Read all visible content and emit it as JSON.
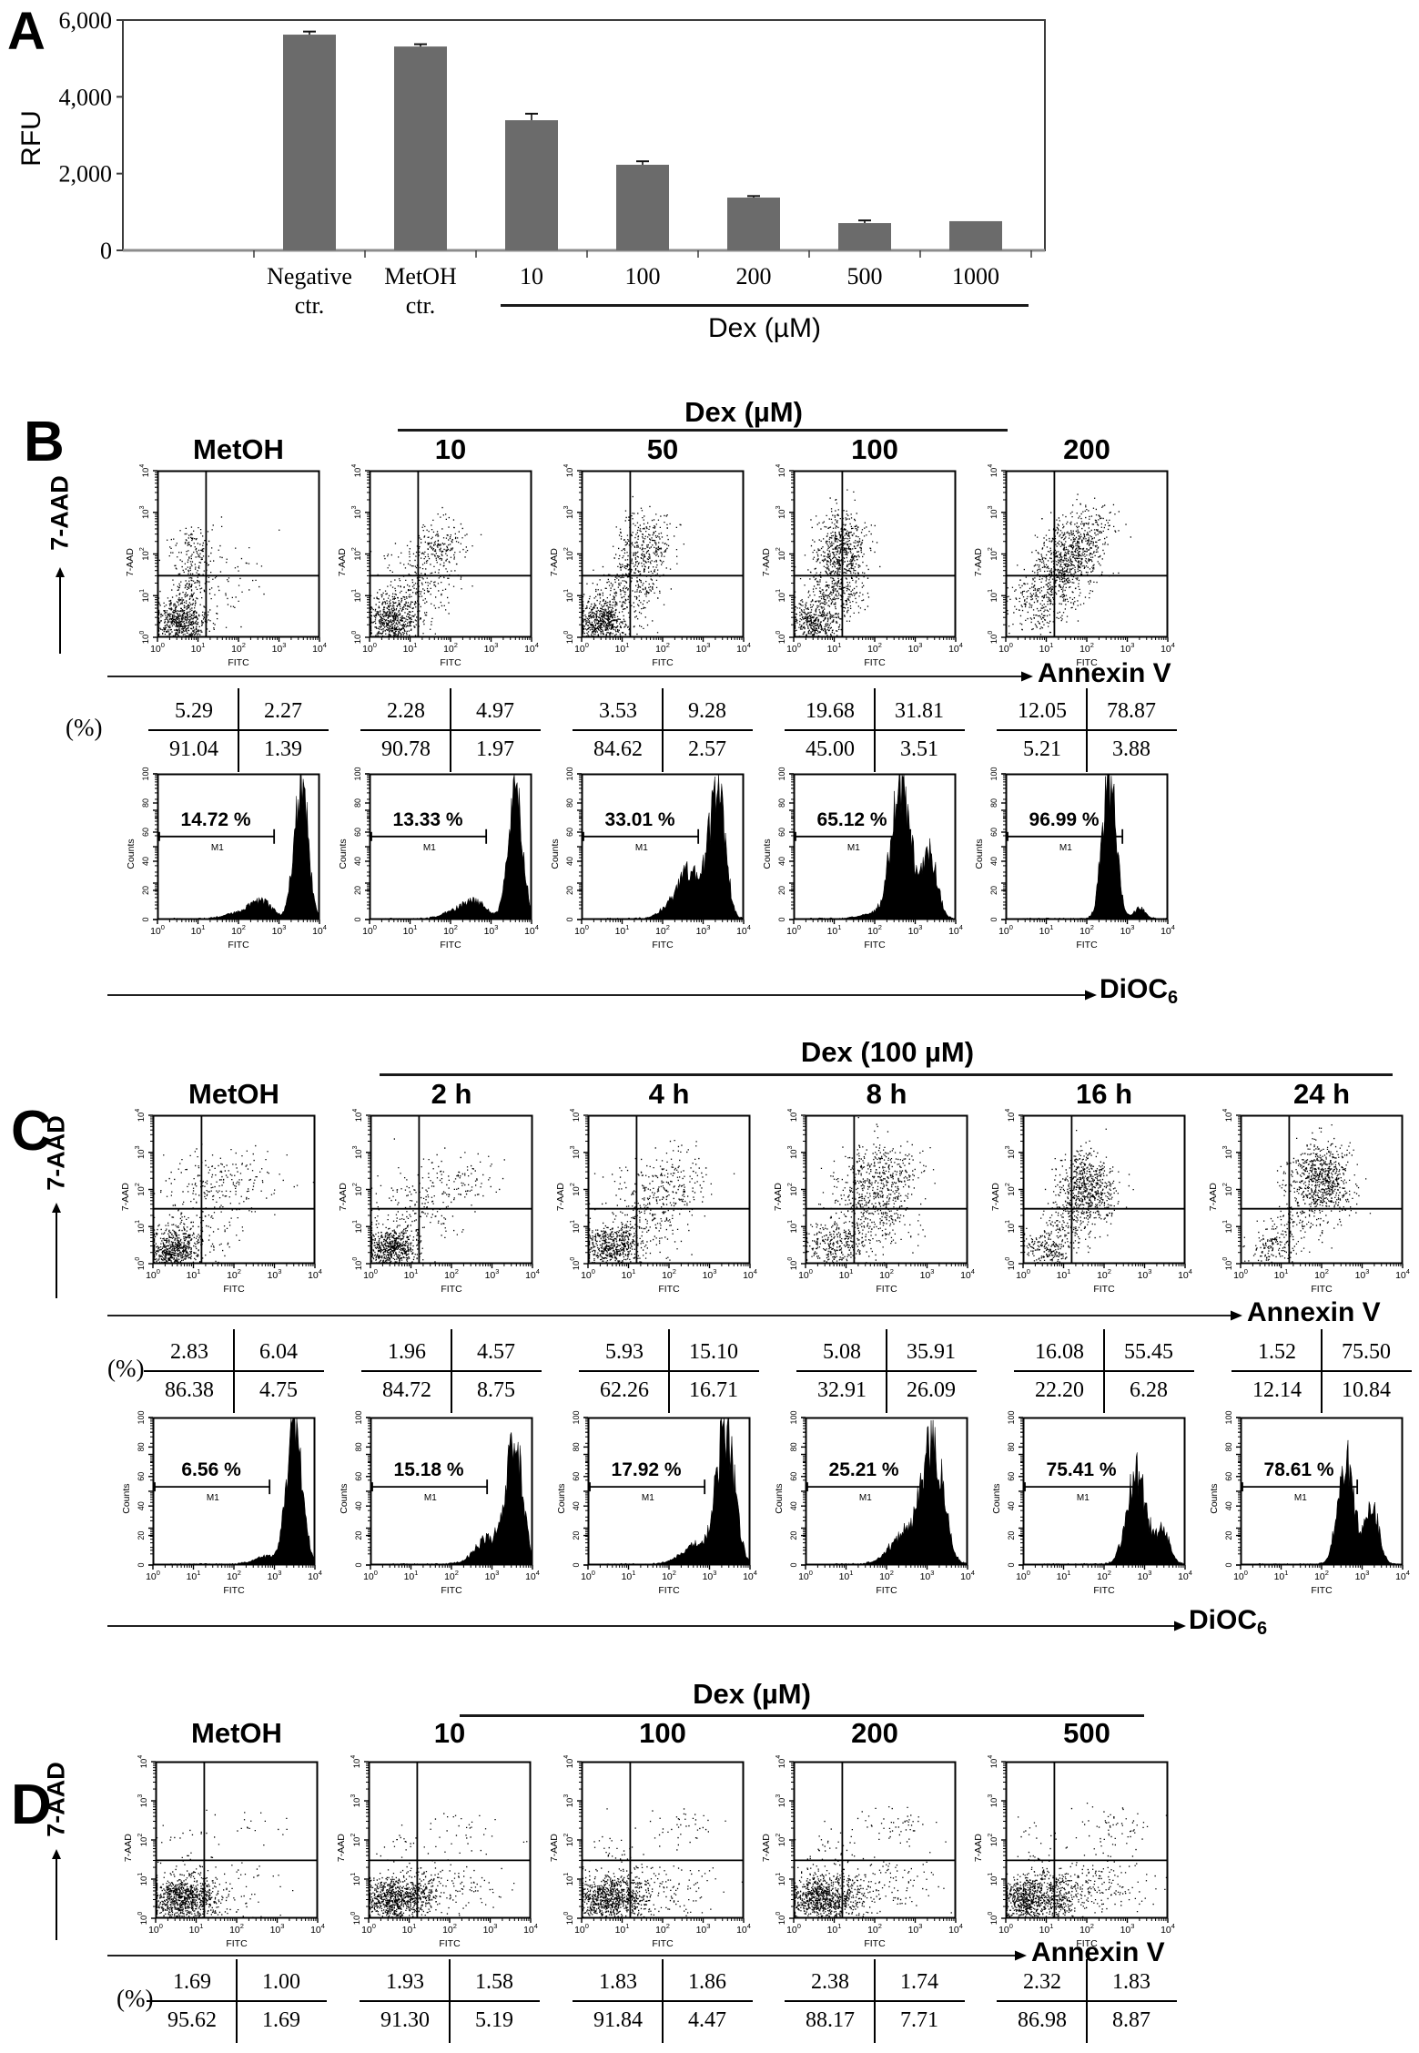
{
  "panelA": {
    "label": "A",
    "ylabel": "RFU",
    "yticks": [
      "6,000",
      "4,000",
      "2,000",
      "0"
    ],
    "ytick_values": [
      6000,
      4000,
      2000,
      0
    ],
    "categories": [
      [
        "Negative",
        "ctr."
      ],
      [
        "MetOH",
        "ctr."
      ],
      [
        "10"
      ],
      [
        "100"
      ],
      [
        "200"
      ],
      [
        "500"
      ],
      [
        "1000"
      ]
    ],
    "values": [
      5620,
      5310,
      3390,
      2230,
      1375,
      710,
      760
    ],
    "errors": [
      80,
      60,
      170,
      90,
      40,
      70,
      0
    ],
    "group_label": "Dex (µM)"
  },
  "panelB": {
    "label": "B",
    "header": "Dex (µM)",
    "side_label": "7-AAD",
    "arrow_glyph": "⟶",
    "x_arrow_label": "Annexin V",
    "dist_label": "DiOC",
    "dist_label_sub": "6",
    "pct_symbol": "(%)",
    "scatter_ylabel": "7-AAD",
    "scatter_xlabel": "FITC",
    "hist_ylabel": "Counts",
    "hist_xlabel": "FITC",
    "m1_label": "M1",
    "log_base": "10",
    "log_exponents": [
      "0",
      "1",
      "2",
      "3",
      "4"
    ],
    "hist_yticks": [
      "0",
      "20",
      "40",
      "60",
      "80",
      "100"
    ],
    "columns": [
      {
        "title": "MetOH",
        "quad": {
          "ul": "5.29",
          "ur": "2.27",
          "ll": "91.04",
          "lr": "1.39"
        },
        "m1_pct": "14.72 %",
        "clusters": [
          [
            0.55,
            0.38,
            0.32,
            0.28,
            640
          ],
          [
            0.85,
            1.35,
            0.25,
            0.45,
            140
          ],
          [
            0.9,
            2.2,
            0.3,
            0.35,
            90
          ],
          [
            1.5,
            1.5,
            0.55,
            0.6,
            70
          ]
        ],
        "hist": [
          [
            3.55,
            0.17,
            100
          ],
          [
            2.55,
            0.28,
            13
          ],
          [
            1.9,
            0.3,
            4
          ]
        ]
      },
      {
        "title": "10",
        "quad": {
          "ul": "2.28",
          "ur": "4.97",
          "ll": "90.78",
          "lr": "1.97"
        },
        "m1_pct": "13.33 %",
        "clusters": [
          [
            0.55,
            0.38,
            0.33,
            0.3,
            640
          ],
          [
            1.1,
            1.2,
            0.45,
            0.5,
            230
          ],
          [
            1.75,
            2.15,
            0.33,
            0.35,
            190
          ]
        ],
        "hist": [
          [
            3.6,
            0.17,
            100
          ],
          [
            2.6,
            0.3,
            13
          ],
          [
            2.0,
            0.25,
            5
          ]
        ]
      },
      {
        "title": "50",
        "quad": {
          "ul": "3.53",
          "ur": "9.28",
          "ll": "84.62",
          "lr": "2.57"
        },
        "m1_pct": "33.01 %",
        "clusters": [
          [
            0.5,
            0.38,
            0.3,
            0.3,
            600
          ],
          [
            1.35,
            1.7,
            0.3,
            0.6,
            330
          ],
          [
            1.75,
            2.3,
            0.3,
            0.35,
            160
          ],
          [
            0.8,
            1.1,
            0.3,
            0.4,
            100
          ]
        ],
        "hist": [
          [
            3.35,
            0.19,
            95
          ],
          [
            2.7,
            0.28,
            33
          ],
          [
            2.2,
            0.3,
            8
          ]
        ]
      },
      {
        "title": "100",
        "quad": {
          "ul": "19.68",
          "ur": "31.81",
          "ll": "45.00",
          "lr": "3.51"
        },
        "m1_pct": "65.12 %",
        "clusters": [
          [
            0.5,
            0.35,
            0.28,
            0.28,
            420
          ],
          [
            1.15,
            1.85,
            0.32,
            0.55,
            600
          ],
          [
            0.95,
            0.95,
            0.3,
            0.35,
            150
          ],
          [
            1.2,
            2.5,
            0.3,
            0.25,
            100
          ]
        ],
        "hist": [
          [
            2.65,
            0.24,
            95
          ],
          [
            3.35,
            0.19,
            45
          ],
          [
            1.9,
            0.3,
            4
          ]
        ]
      },
      {
        "title": "200",
        "quad": {
          "ul": "12.05",
          "ur": "78.87",
          "ll": "5.21",
          "lr": "3.88"
        },
        "m1_pct": "96.99 %",
        "clusters": [
          [
            1.3,
            1.5,
            0.35,
            0.4,
            350
          ],
          [
            1.7,
            2.15,
            0.35,
            0.4,
            450
          ],
          [
            0.8,
            0.8,
            0.35,
            0.4,
            200
          ],
          [
            2.2,
            2.7,
            0.3,
            0.3,
            80
          ]
        ],
        "hist": [
          [
            2.55,
            0.17,
            100
          ],
          [
            3.3,
            0.15,
            8
          ]
        ]
      }
    ]
  },
  "panelC": {
    "label": "C",
    "header": "Dex (100 µM)",
    "side_label": "7-AAD",
    "arrow_glyph": "⟶",
    "x_arrow_label": "Annexin V",
    "dist_label": "DiOC",
    "dist_label_sub": "6",
    "pct_symbol": "(%)",
    "scatter_ylabel": "7-AAD",
    "scatter_xlabel": "FITC",
    "hist_ylabel": "Counts",
    "hist_xlabel": "FITC",
    "m1_label": "M1",
    "log_base": "10",
    "log_exponents": [
      "0",
      "1",
      "2",
      "3",
      "4"
    ],
    "hist_yticks": [
      "0",
      "20",
      "40",
      "60",
      "80",
      "100"
    ],
    "columns": [
      {
        "title": "MetOH",
        "quad": {
          "ul": "2.83",
          "ur": "6.04",
          "ll": "86.38",
          "lr": "4.75"
        },
        "m1_pct": "6.56 %",
        "clusters": [
          [
            0.55,
            0.38,
            0.33,
            0.3,
            640
          ],
          [
            1.2,
            2.1,
            0.55,
            0.45,
            130
          ],
          [
            2.2,
            2.2,
            0.55,
            0.45,
            90
          ],
          [
            1.3,
            0.9,
            0.5,
            0.4,
            80
          ]
        ],
        "hist": [
          [
            3.5,
            0.19,
            100
          ],
          [
            2.8,
            0.3,
            6
          ]
        ]
      },
      {
        "title": "2 h",
        "quad": {
          "ul": "1.96",
          "ur": "4.57",
          "ll": "84.72",
          "lr": "8.75"
        },
        "m1_pct": "15.18 %",
        "clusters": [
          [
            0.55,
            0.4,
            0.33,
            0.3,
            640
          ],
          [
            1.3,
            1.6,
            0.5,
            0.55,
            170
          ],
          [
            2.3,
            2.3,
            0.5,
            0.4,
            80
          ]
        ],
        "hist": [
          [
            3.55,
            0.2,
            88
          ],
          [
            2.9,
            0.33,
            18
          ]
        ]
      },
      {
        "title": "4 h",
        "quad": {
          "ul": "5.93",
          "ur": "15.10",
          "ll": "62.26",
          "lr": "16.71"
        },
        "m1_pct": "17.92 %",
        "clusters": [
          [
            0.6,
            0.45,
            0.35,
            0.3,
            550
          ],
          [
            1.5,
            1.4,
            0.55,
            0.6,
            280
          ],
          [
            2.2,
            2.3,
            0.45,
            0.45,
            130
          ]
        ],
        "hist": [
          [
            3.4,
            0.22,
            92
          ],
          [
            2.7,
            0.4,
            14
          ]
        ]
      },
      {
        "title": "8 h",
        "quad": {
          "ul": "5.08",
          "ur": "35.91",
          "ll": "32.91",
          "lr": "26.09"
        },
        "m1_pct": "25.21 %",
        "clusters": [
          [
            0.7,
            0.5,
            0.4,
            0.35,
            300
          ],
          [
            1.6,
            1.7,
            0.5,
            0.7,
            550
          ],
          [
            2.1,
            2.5,
            0.4,
            0.4,
            170
          ]
        ],
        "hist": [
          [
            3.15,
            0.26,
            80
          ],
          [
            2.5,
            0.4,
            22
          ]
        ]
      },
      {
        "title": "16 h",
        "quad": {
          "ul": "16.08",
          "ur": "55.45",
          "ll": "22.20",
          "lr": "6.28"
        },
        "m1_pct": "75.41 %",
        "clusters": [
          [
            0.6,
            0.45,
            0.3,
            0.3,
            220
          ],
          [
            1.55,
            2.05,
            0.35,
            0.5,
            650
          ],
          [
            1.1,
            1.1,
            0.35,
            0.4,
            140
          ]
        ],
        "hist": [
          [
            2.8,
            0.24,
            64
          ],
          [
            3.45,
            0.18,
            22
          ]
        ]
      },
      {
        "title": "24 h",
        "quad": {
          "ul": "1.52",
          "ur": "75.50",
          "ll": "12.14",
          "lr": "10.84"
        },
        "m1_pct": "78.61 %",
        "clusters": [
          [
            0.8,
            0.45,
            0.3,
            0.3,
            160
          ],
          [
            2.0,
            2.3,
            0.38,
            0.45,
            700
          ],
          [
            1.5,
            1.2,
            0.4,
            0.4,
            120
          ]
        ],
        "hist": [
          [
            2.6,
            0.2,
            72
          ],
          [
            3.25,
            0.17,
            42
          ]
        ]
      }
    ]
  },
  "panelD": {
    "label": "D",
    "header": "Dex (µM)",
    "side_label": "7-AAD",
    "arrow_glyph": "⟶",
    "x_arrow_label": "Annexin V",
    "pct_symbol": "(%)",
    "scatter_ylabel": "7-AAD",
    "scatter_xlabel": "FITC",
    "log_base": "10",
    "log_exponents": [
      "0",
      "1",
      "2",
      "3",
      "4"
    ],
    "columns": [
      {
        "title": "MetOH",
        "quad": {
          "ul": "1.69",
          "ur": "1.00",
          "ll": "95.62",
          "lr": "1.69"
        },
        "clusters": [
          [
            0.55,
            0.5,
            0.33,
            0.28,
            640
          ],
          [
            1.15,
            0.55,
            0.28,
            0.3,
            210
          ],
          [
            1.9,
            0.8,
            0.7,
            0.38,
            70
          ],
          [
            2.5,
            2.3,
            0.5,
            0.28,
            18
          ],
          [
            0.85,
            1.65,
            0.33,
            0.4,
            35
          ]
        ]
      },
      {
        "title": "10",
        "quad": {
          "ul": "1.93",
          "ur": "1.58",
          "ll": "91.30",
          "lr": "5.19"
        },
        "clusters": [
          [
            0.55,
            0.5,
            0.33,
            0.28,
            640
          ],
          [
            1.2,
            0.55,
            0.28,
            0.3,
            220
          ],
          [
            2.0,
            0.75,
            0.7,
            0.38,
            120
          ],
          [
            2.5,
            2.3,
            0.55,
            0.28,
            30
          ],
          [
            0.85,
            1.65,
            0.33,
            0.4,
            35
          ]
        ]
      },
      {
        "title": "100",
        "quad": {
          "ul": "1.83",
          "ur": "1.86",
          "ll": "91.84",
          "lr": "4.47"
        },
        "clusters": [
          [
            0.55,
            0.5,
            0.33,
            0.28,
            640
          ],
          [
            1.2,
            0.55,
            0.28,
            0.3,
            220
          ],
          [
            2.0,
            0.75,
            0.72,
            0.38,
            140
          ],
          [
            2.5,
            2.35,
            0.55,
            0.28,
            42
          ],
          [
            0.85,
            1.65,
            0.33,
            0.4,
            35
          ]
        ]
      },
      {
        "title": "200",
        "quad": {
          "ul": "2.38",
          "ur": "1.74",
          "ll": "88.17",
          "lr": "7.71"
        },
        "clusters": [
          [
            0.55,
            0.5,
            0.33,
            0.28,
            620
          ],
          [
            1.2,
            0.55,
            0.3,
            0.3,
            230
          ],
          [
            2.05,
            0.78,
            0.72,
            0.4,
            160
          ],
          [
            2.5,
            2.35,
            0.55,
            0.28,
            55
          ],
          [
            0.85,
            1.65,
            0.33,
            0.4,
            40
          ]
        ]
      },
      {
        "title": "500",
        "quad": {
          "ul": "2.32",
          "ur": "1.83",
          "ll": "86.98",
          "lr": "8.87"
        },
        "clusters": [
          [
            0.55,
            0.5,
            0.33,
            0.28,
            620
          ],
          [
            1.25,
            0.55,
            0.3,
            0.3,
            240
          ],
          [
            2.1,
            0.8,
            0.75,
            0.42,
            210
          ],
          [
            2.55,
            2.35,
            0.55,
            0.28,
            60
          ],
          [
            0.85,
            1.65,
            0.33,
            0.4,
            40
          ]
        ]
      }
    ]
  },
  "chart_data": [
    {
      "type": "bar",
      "title": "",
      "ylabel": "RFU",
      "ylim": [
        0,
        6000
      ],
      "categories": [
        "Negative ctr.",
        "MetOH ctr.",
        "10",
        "100",
        "200",
        "500",
        "1000"
      ],
      "values": [
        5620,
        5310,
        3390,
        2230,
        1375,
        710,
        760
      ],
      "errors": [
        80,
        60,
        170,
        90,
        40,
        70,
        0
      ],
      "group_label": "Dex (µM)",
      "group_members": [
        "10",
        "100",
        "200",
        "500",
        "1000"
      ],
      "legend": "none",
      "grid": false
    },
    {
      "type": "scatter",
      "panel": "B",
      "x": "Annexin V (FITC)",
      "y": "7-AAD",
      "axis_range_decades": [
        0,
        4
      ],
      "conditions": [
        "MetOH",
        "10",
        "50",
        "100",
        "200"
      ],
      "quadrant_percentages": [
        {
          "ul": 5.29,
          "ur": 2.27,
          "ll": 91.04,
          "lr": 1.39
        },
        {
          "ul": 2.28,
          "ur": 4.97,
          "ll": 90.78,
          "lr": 1.97
        },
        {
          "ul": 3.53,
          "ur": 9.28,
          "ll": 84.62,
          "lr": 2.57
        },
        {
          "ul": 19.68,
          "ur": 31.81,
          "ll": 45.0,
          "lr": 3.51
        },
        {
          "ul": 12.05,
          "ur": 78.87,
          "ll": 5.21,
          "lr": 3.88
        }
      ],
      "m1_percentages": [
        14.72,
        13.33,
        33.01,
        65.12,
        96.99
      ],
      "histogram_x": "DiOC6 (FITC)",
      "histogram_y": "Counts",
      "histogram_ylim": [
        0,
        100
      ]
    },
    {
      "type": "scatter",
      "panel": "C",
      "x": "Annexin V (FITC)",
      "y": "7-AAD",
      "axis_range_decades": [
        0,
        4
      ],
      "conditions": [
        "MetOH",
        "2 h",
        "4 h",
        "8 h",
        "16 h",
        "24 h"
      ],
      "quadrant_percentages": [
        {
          "ul": 2.83,
          "ur": 6.04,
          "ll": 86.38,
          "lr": 4.75
        },
        {
          "ul": 1.96,
          "ur": 4.57,
          "ll": 84.72,
          "lr": 8.75
        },
        {
          "ul": 5.93,
          "ur": 15.1,
          "ll": 62.26,
          "lr": 16.71
        },
        {
          "ul": 5.08,
          "ur": 35.91,
          "ll": 32.91,
          "lr": 26.09
        },
        {
          "ul": 16.08,
          "ur": 55.45,
          "ll": 22.2,
          "lr": 6.28
        },
        {
          "ul": 1.52,
          "ur": 75.5,
          "ll": 12.14,
          "lr": 10.84
        }
      ],
      "m1_percentages": [
        6.56,
        15.18,
        17.92,
        25.21,
        75.41,
        78.61
      ],
      "histogram_x": "DiOC6 (FITC)",
      "histogram_y": "Counts",
      "histogram_ylim": [
        0,
        100
      ]
    },
    {
      "type": "scatter",
      "panel": "D",
      "x": "Annexin V (FITC)",
      "y": "7-AAD",
      "axis_range_decades": [
        0,
        4
      ],
      "conditions": [
        "MetOH",
        "10",
        "100",
        "200",
        "500"
      ],
      "quadrant_percentages": [
        {
          "ul": 1.69,
          "ur": 1.0,
          "ll": 95.62,
          "lr": 1.69
        },
        {
          "ul": 1.93,
          "ur": 1.58,
          "ll": 91.3,
          "lr": 5.19
        },
        {
          "ul": 1.83,
          "ur": 1.86,
          "ll": 91.84,
          "lr": 4.47
        },
        {
          "ul": 2.38,
          "ur": 1.74,
          "ll": 88.17,
          "lr": 7.71
        },
        {
          "ul": 2.32,
          "ur": 1.83,
          "ll": 86.98,
          "lr": 8.87
        }
      ]
    }
  ]
}
